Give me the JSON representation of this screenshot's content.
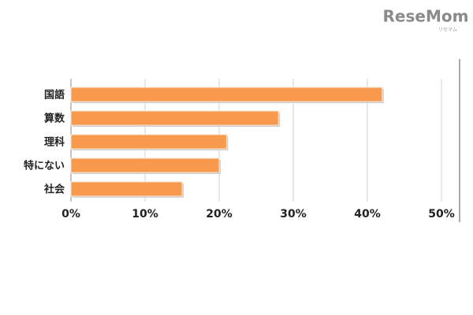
{
  "watermark": "ReseMom",
  "watermark_sub": "リセマム",
  "chart_data": {
    "type": "bar",
    "orientation": "horizontal",
    "categories": [
      "国語",
      "算数",
      "理科",
      "特にない",
      "社会"
    ],
    "values": [
      42,
      28,
      21,
      20,
      15
    ],
    "color": "#f79a4e",
    "xlim": [
      0,
      50
    ],
    "xticks": [
      {
        "value": 0,
        "label": "0%"
      },
      {
        "value": 10,
        "label": "10%"
      },
      {
        "value": 20,
        "label": "20%"
      },
      {
        "value": 30,
        "label": "30%"
      },
      {
        "value": 40,
        "label": "40%"
      },
      {
        "value": 50,
        "label": "50%"
      }
    ],
    "grid": true
  }
}
